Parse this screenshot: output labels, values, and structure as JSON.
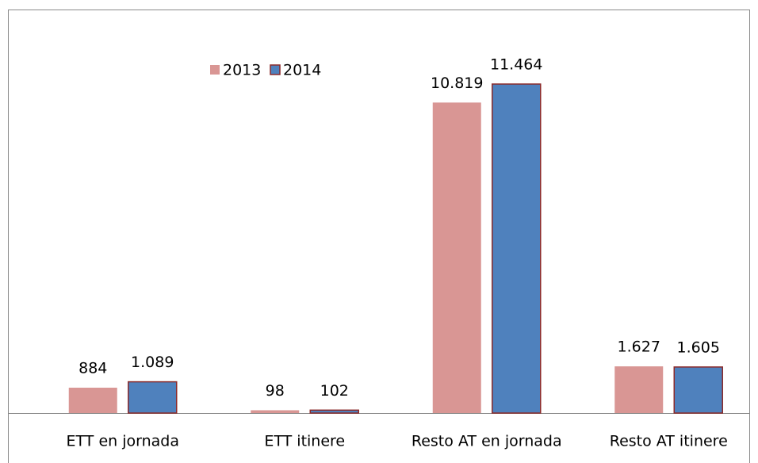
{
  "chart_data": {
    "type": "bar",
    "categories": [
      "ETT en jornada",
      "ETT itinere",
      "Resto AT en jornada",
      "Resto AT itinere"
    ],
    "series": [
      {
        "name": "2013",
        "color": "#d99694",
        "values": [
          884,
          98,
          10819,
          1627
        ],
        "value_labels": [
          "884",
          "98",
          "10.819",
          "1.627"
        ]
      },
      {
        "name": "2014",
        "color": "#4f81bd",
        "values": [
          1089,
          102,
          11464,
          1605
        ],
        "value_labels": [
          "1.089",
          "102",
          "11.464",
          "1.605"
        ]
      }
    ],
    "legend": "top-left"
  }
}
